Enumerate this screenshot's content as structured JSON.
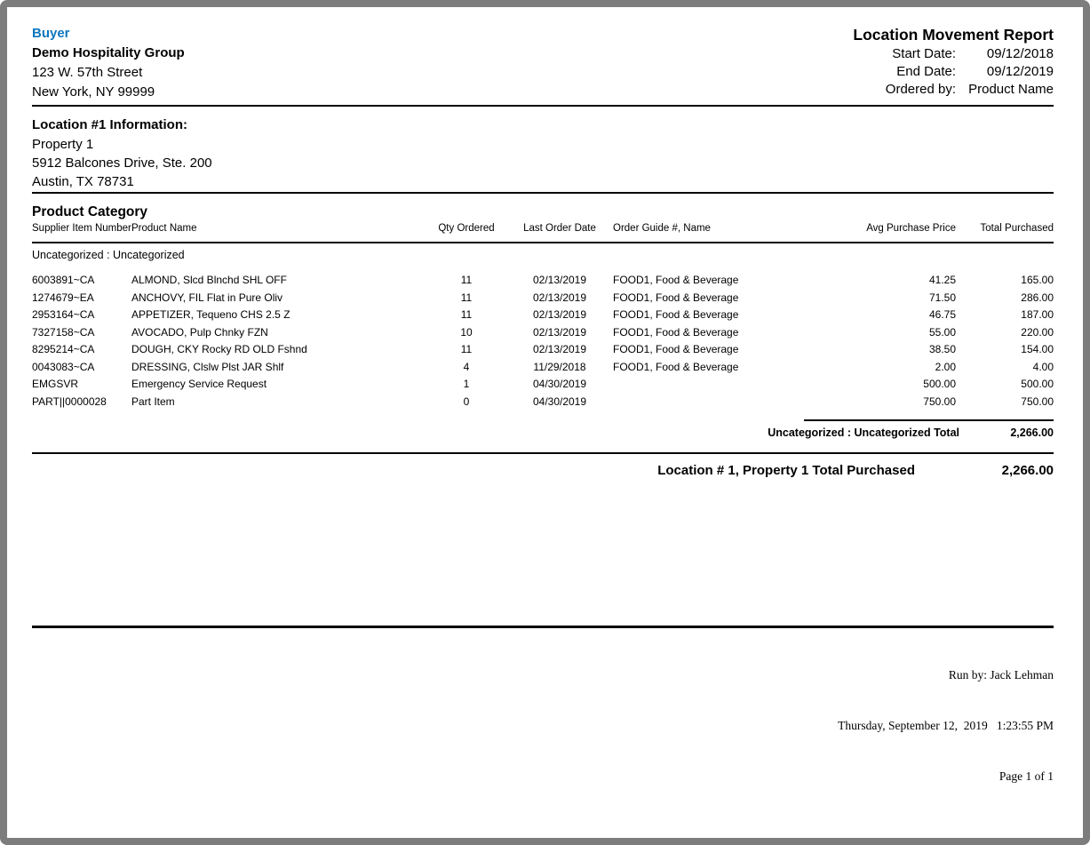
{
  "report": {
    "brand_label": "Buyer",
    "company": {
      "name": "Demo Hospitality Group",
      "address1": "123 W. 57th Street",
      "address2": "New York, NY 99999"
    },
    "title": "Location Movement Report",
    "meta": [
      {
        "label": "Start Date:",
        "value": "09/12/2018"
      },
      {
        "label": "End Date:",
        "value": "09/12/2019"
      },
      {
        "label": "Ordered by:",
        "value": "Product Name"
      }
    ],
    "location": {
      "heading": "Location #1 Information:",
      "name": "Property 1",
      "address1": "5912 Balcones Drive, Ste. 200",
      "address2": "Austin, TX 78731"
    },
    "table": {
      "section_title": "Product Category",
      "columns": [
        "Supplier Item Number",
        "Product Name",
        "Qty Ordered",
        "Last Order Date",
        "Order Guide #, Name",
        "Avg Purchase Price",
        "Total Purchased"
      ],
      "group_label": "Uncategorized : Uncategorized",
      "rows": [
        [
          "6003891~CA",
          "ALMOND, Slcd Blnchd SHL OFF",
          "11",
          "02/13/2019",
          "FOOD1, Food & Beverage",
          "41.25",
          "165.00"
        ],
        [
          "1274679~EA",
          "ANCHOVY, FIL Flat in Pure Oliv",
          "11",
          "02/13/2019",
          "FOOD1, Food & Beverage",
          "71.50",
          "286.00"
        ],
        [
          "2953164~CA",
          "APPETIZER, Tequeno CHS 2.5 Z",
          "11",
          "02/13/2019",
          "FOOD1, Food & Beverage",
          "46.75",
          "187.00"
        ],
        [
          "7327158~CA",
          "AVOCADO, Pulp Chnky FZN",
          "10",
          "02/13/2019",
          "FOOD1, Food & Beverage",
          "55.00",
          "220.00"
        ],
        [
          "8295214~CA",
          "DOUGH, CKY Rocky RD OLD Fshnd",
          "11",
          "02/13/2019",
          "FOOD1, Food & Beverage",
          "38.50",
          "154.00"
        ],
        [
          "0043083~CA",
          "DRESSING, Clslw Plst JAR Shlf",
          "4",
          "11/29/2018",
          "FOOD1, Food & Beverage",
          "2.00",
          "4.00"
        ],
        [
          "EMGSVR",
          "Emergency Service Request",
          "1",
          "04/30/2019",
          "",
          "500.00",
          "500.00"
        ],
        [
          "PART||0000028",
          "Part Item",
          "0",
          "04/30/2019",
          "",
          "750.00",
          "750.00"
        ]
      ],
      "group_total": {
        "label": "Uncategorized : Uncategorized Total",
        "value": "2,266.00"
      },
      "location_total": {
        "label": "Location # 1, Property 1 Total Purchased",
        "value": "2,266.00"
      }
    },
    "footer": {
      "run_by": "Run by: Jack Lehman",
      "datetime": "Thursday, September 12,  2019   1:23:55 PM",
      "page": "Page 1 of 1"
    },
    "colors": {
      "accent_blue": "#0e76bc"
    }
  }
}
